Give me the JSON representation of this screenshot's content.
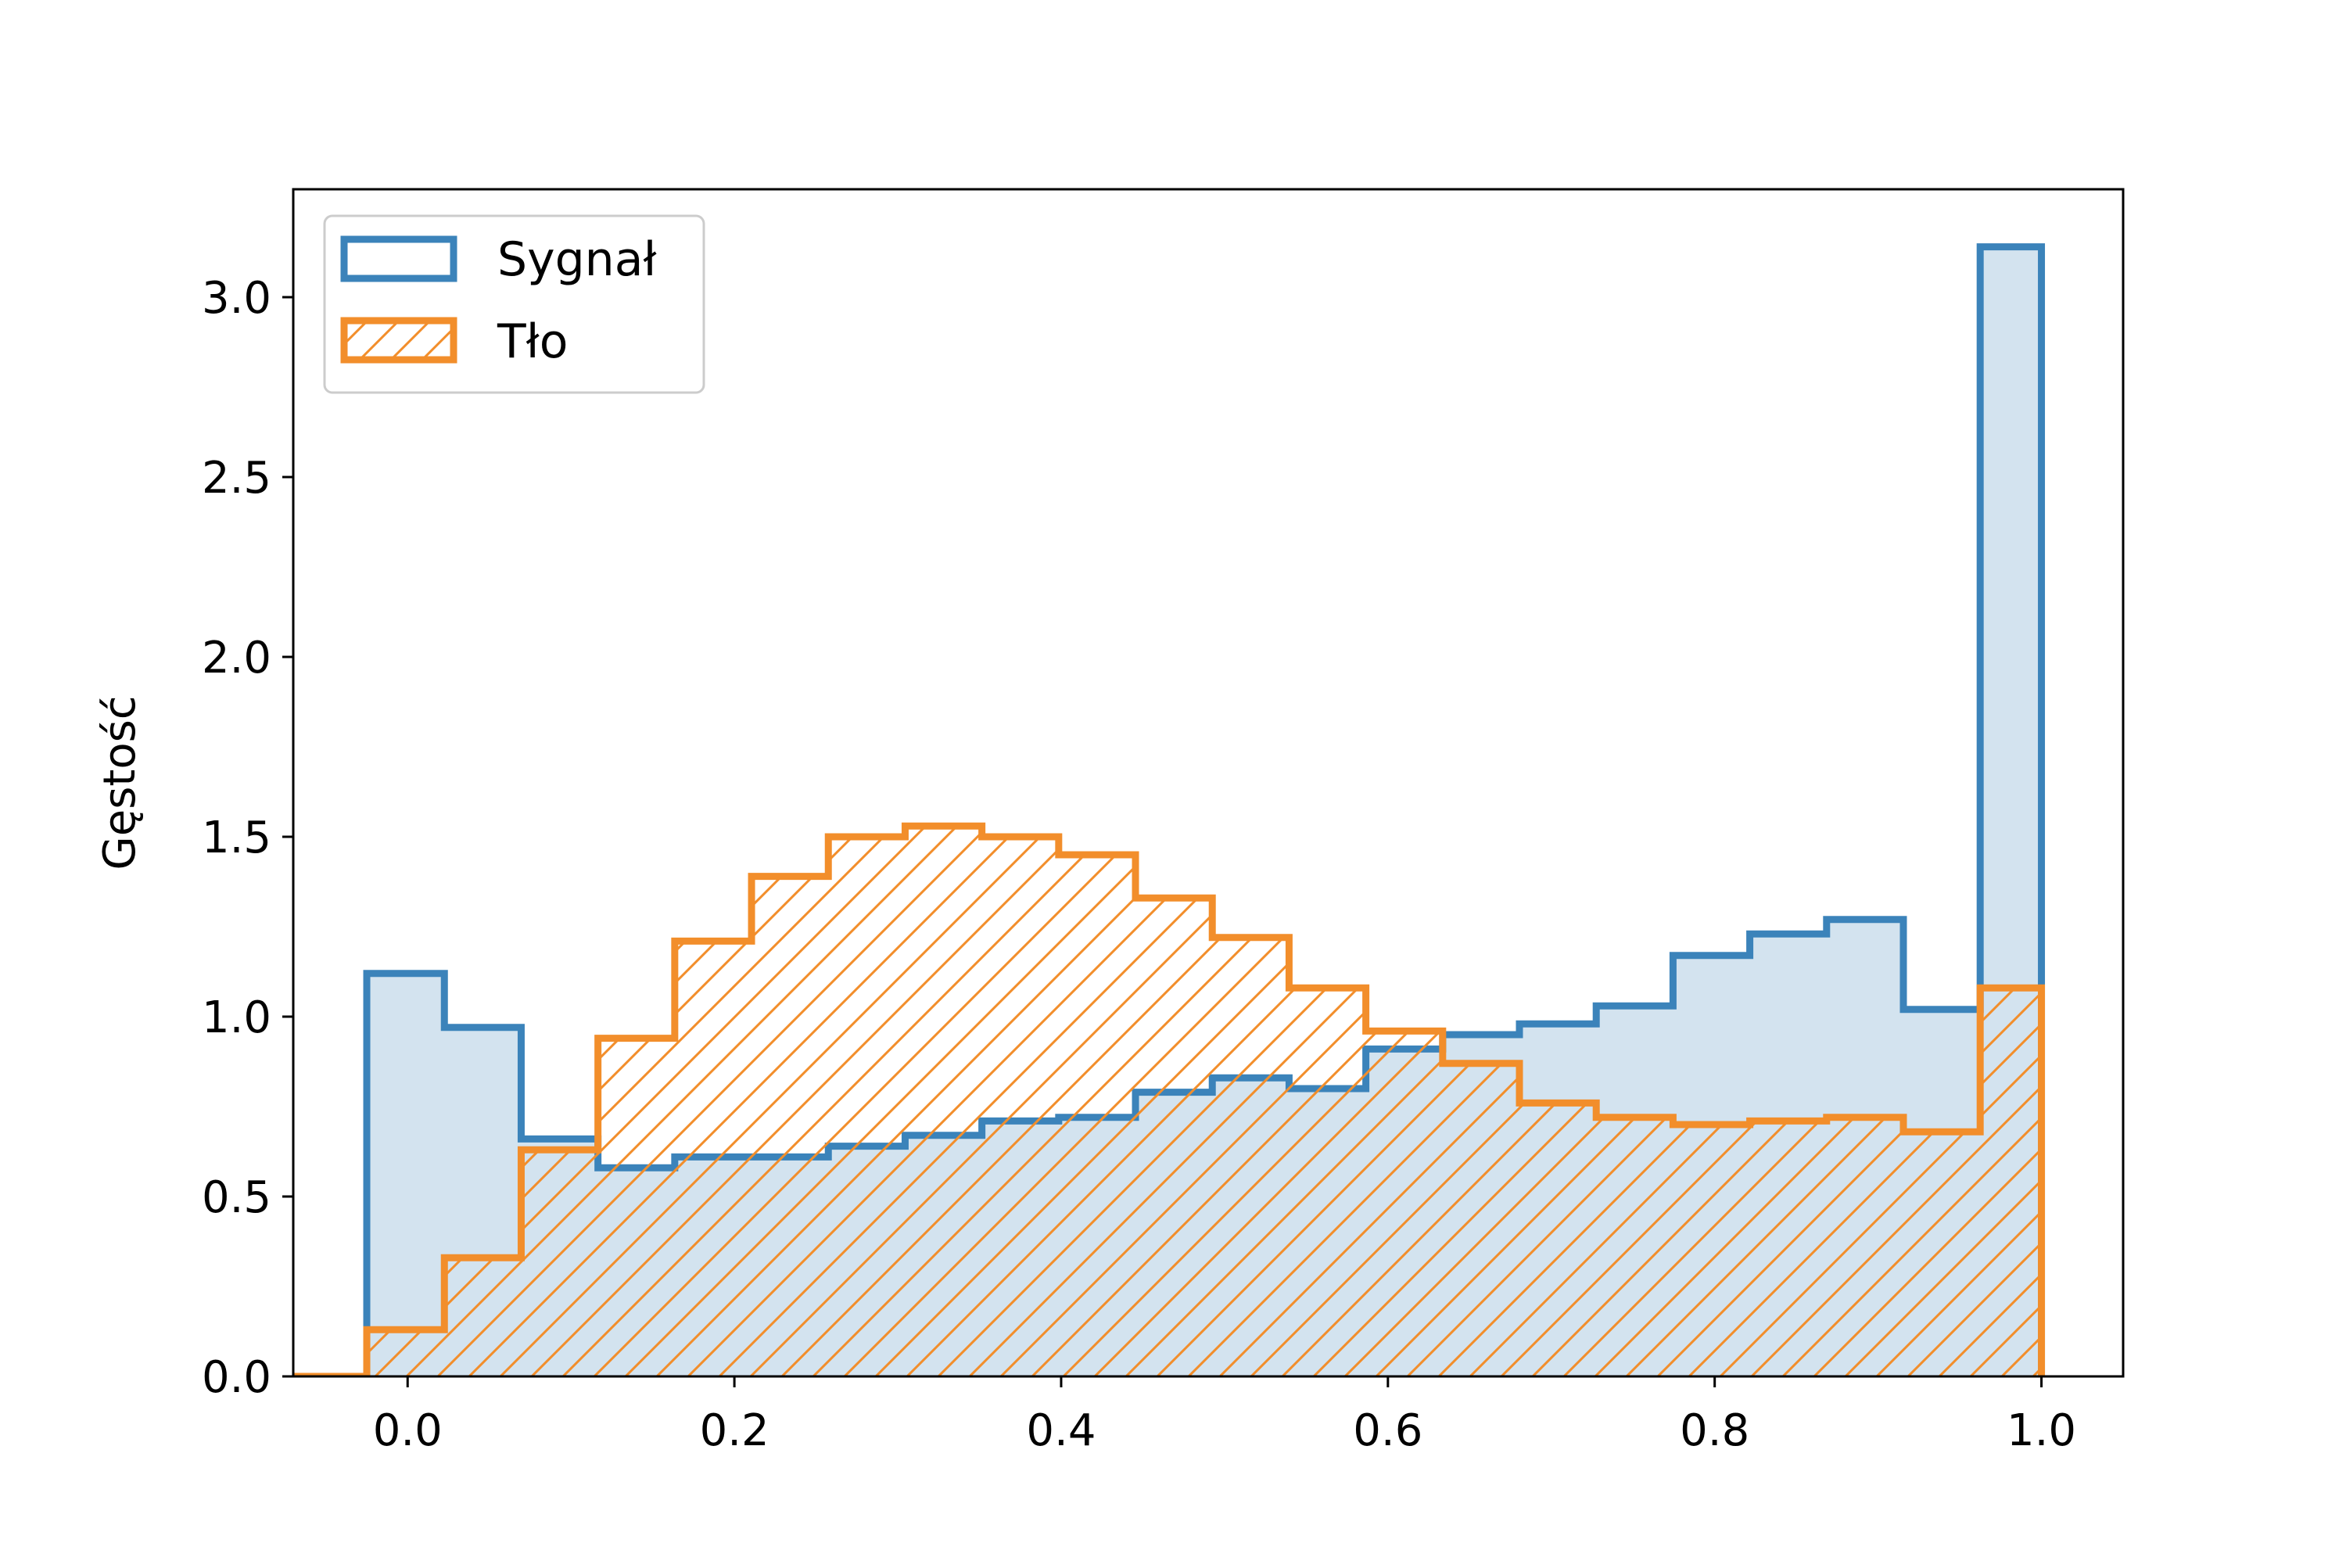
{
  "chart_data": {
    "type": "histogram",
    "title": "",
    "xlabel": "",
    "ylabel": "Gęstość",
    "xlim": [
      -0.07,
      1.05
    ],
    "ylim": [
      0.0,
      3.3
    ],
    "xticks": [
      0.0,
      0.2,
      0.4,
      0.6,
      0.8,
      1.0
    ],
    "xtick_labels": [
      "0.0",
      "0.2",
      "0.4",
      "0.6",
      "0.8",
      "1.0"
    ],
    "yticks": [
      0.0,
      0.5,
      1.0,
      1.5,
      2.0,
      2.5,
      3.0
    ],
    "ytick_labels": [
      "0.0",
      "0.5",
      "1.0",
      "1.5",
      "2.0",
      "2.5",
      "3.0"
    ],
    "grid": false,
    "legend_position": "top-left",
    "bin_edges": [
      -0.025,
      0.0225,
      0.0695,
      0.1165,
      0.1635,
      0.2105,
      0.2575,
      0.3045,
      0.3515,
      0.3985,
      0.4455,
      0.4925,
      0.5395,
      0.5865,
      0.6335,
      0.6805,
      0.7275,
      0.7745,
      0.8215,
      0.8685,
      0.9155,
      0.9625,
      1.0
    ],
    "series": [
      {
        "name": "Sygnał",
        "style": "stepfilled",
        "color": "#3b83ba",
        "fill": "#d3e3ef",
        "values": [
          1.12,
          0.97,
          0.66,
          0.58,
          0.61,
          0.61,
          0.64,
          0.67,
          0.71,
          0.72,
          0.79,
          0.83,
          0.8,
          0.91,
          0.95,
          0.98,
          1.03,
          1.17,
          1.23,
          1.27,
          1.02,
          3.14
        ]
      },
      {
        "name": "Tło",
        "style": "step-hatched",
        "color": "#f28e2b",
        "hatch": "///",
        "values": [
          0.13,
          0.33,
          0.63,
          0.94,
          1.21,
          1.39,
          1.5,
          1.53,
          1.5,
          1.45,
          1.33,
          1.22,
          1.08,
          0.96,
          0.87,
          0.76,
          0.72,
          0.7,
          0.71,
          0.72,
          0.68,
          1.08
        ]
      }
    ]
  }
}
